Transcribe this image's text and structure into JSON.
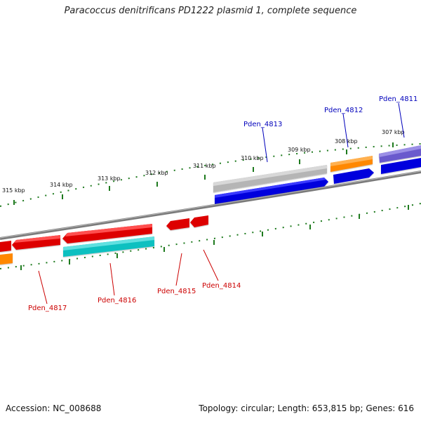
{
  "title": "Paracoccus denitrificans PD1222 plasmid 1, complete sequence",
  "footer": {
    "accession": "Accession: NC_008688",
    "summary": "Topology: circular; Length: 653,815 bp; Genes: 616"
  },
  "colors": {
    "backbone": "#8a8a8a",
    "tick": "#1e7a1e",
    "forward_label": "#0000bb",
    "reverse_label": "#cc0000",
    "red": "#dd0000",
    "blue": "#0000dd",
    "orange": "#ff8800",
    "gray": "#b5b5b5",
    "purple": "#6a5acd",
    "cyan": "#10c0c0"
  },
  "kbp_labels": [
    "315 kbp",
    "314 kbp",
    "313 kbp",
    "312 kbp",
    "311 kbp",
    "310 kbp",
    "309 kbp",
    "308 kbp",
    "307 kbp"
  ],
  "gene_labels": {
    "pden_4811": "Pden_4811",
    "pden_4812": "Pden_4812",
    "pden_4813": "Pden_4813",
    "pden_4814": "Pden_4814",
    "pden_4815": "Pden_4815",
    "pden_4816": "Pden_4816",
    "pden_4817": "Pden_4817"
  }
}
